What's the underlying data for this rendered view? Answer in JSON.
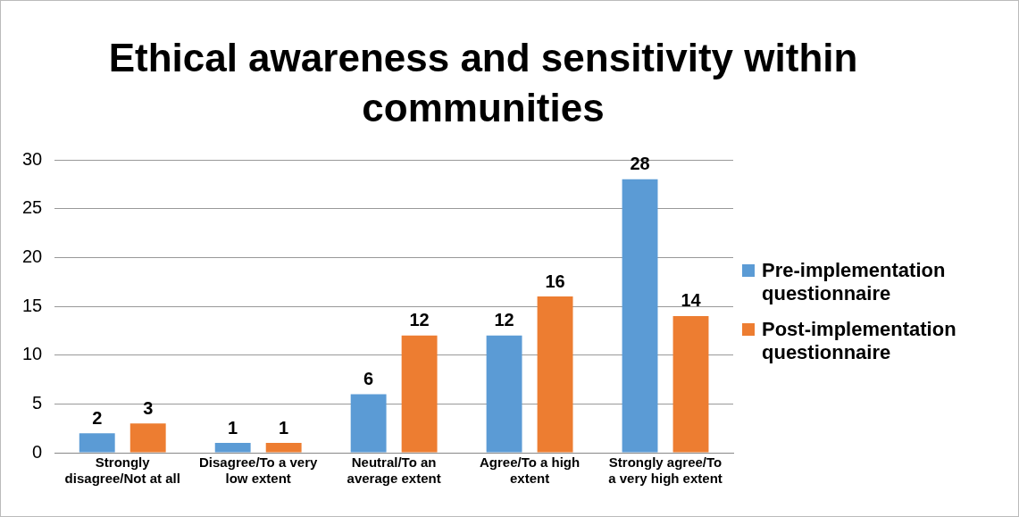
{
  "chart_data": {
    "type": "bar",
    "title": "Ethical awareness and sensitivity within communities",
    "categories": [
      "Strongly disagree/Not at all",
      "Disagree/To a very low extent",
      "Neutral/To an average extent",
      "Agree/To a high extent",
      "Strongly agree/To a very high extent"
    ],
    "series": [
      {
        "name": "Pre-implementation questionnaire",
        "color": "#5b9bd5",
        "values": [
          2,
          1,
          6,
          12,
          28
        ]
      },
      {
        "name": "Post-implementation questionnaire",
        "color": "#ed7d31",
        "values": [
          3,
          1,
          12,
          16,
          14
        ]
      }
    ],
    "ylim": [
      0,
      30
    ],
    "yticks": [
      0,
      5,
      10,
      15,
      20,
      25,
      30
    ],
    "grid": "y",
    "legend": "right",
    "data_labels": true
  }
}
